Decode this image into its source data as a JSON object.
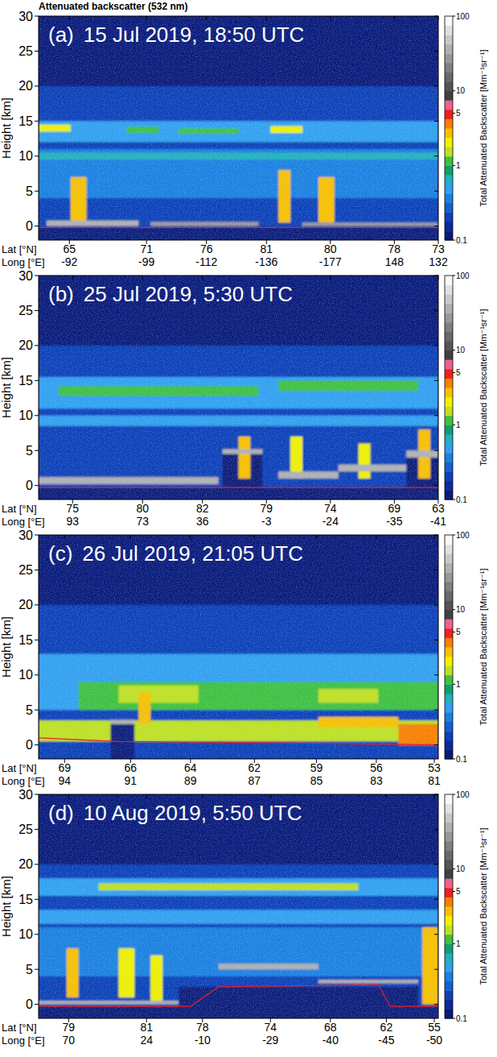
{
  "title": "Attenuated backscatter (532 nm)",
  "chart_data": [
    {
      "type": "curtain",
      "label": "(a)",
      "title": "15 Jul 2019, 18:50 UTC",
      "ylabel": "Height [km]",
      "xlabel": [
        "Lat [°N]",
        "Long [°E]"
      ],
      "xlim": [
        0,
        100
      ],
      "xticks": [
        {
          "value": 7.7,
          "label": [
            "65",
            "-92"
          ]
        },
        {
          "value": 27,
          "label": [
            "71",
            "-99"
          ]
        },
        {
          "value": 42,
          "label": [
            "76",
            "-112"
          ]
        },
        {
          "value": 57,
          "label": [
            "81",
            "-136"
          ]
        },
        {
          "value": 73,
          "label": [
            "80",
            "-177"
          ]
        },
        {
          "value": 89,
          "label": [
            "78",
            "148"
          ]
        },
        {
          "value": 100,
          "label": [
            "73",
            "132"
          ]
        }
      ],
      "ylim": [
        -2,
        30
      ],
      "yticks": [
        0,
        5,
        10,
        15,
        20,
        25,
        30
      ],
      "background": 0.11,
      "layers": [
        {
          "x": [
            0,
            100
          ],
          "y": [
            -2,
            20
          ],
          "value": 0.2
        },
        {
          "x": [
            0,
            100
          ],
          "y": [
            4,
            11
          ],
          "value": 0.35
        },
        {
          "x": [
            0,
            100
          ],
          "y": [
            12,
            15
          ],
          "value": 0.45
        },
        {
          "x": [
            0,
            100
          ],
          "y": [
            9.5,
            10.5
          ],
          "value": 0.6
        },
        {
          "x": [
            0,
            8
          ],
          "y": [
            13.5,
            14.5
          ],
          "value": 1.8
        },
        {
          "x": [
            22,
            30
          ],
          "y": [
            13.3,
            14.2
          ],
          "value": 1.2
        },
        {
          "x": [
            35,
            50
          ],
          "y": [
            13.2,
            14
          ],
          "value": 1.2
        },
        {
          "x": [
            58,
            66
          ],
          "y": [
            13.3,
            14.3
          ],
          "value": 2
        },
        {
          "x": [
            0,
            100
          ],
          "y": [
            -2,
            -0.2
          ],
          "value": 0.1
        },
        {
          "x": [
            8,
            12
          ],
          "y": [
            0.5,
            7
          ],
          "value": 3
        },
        {
          "x": [
            60,
            63
          ],
          "y": [
            0.5,
            8
          ],
          "value": 2.5
        },
        {
          "x": [
            70,
            74
          ],
          "y": [
            0.5,
            7
          ],
          "value": 3
        },
        {
          "x": [
            2,
            25
          ],
          "y": [
            0,
            0.8
          ],
          "value": 40
        },
        {
          "x": [
            28,
            55
          ],
          "y": [
            0,
            0.6
          ],
          "value": 30
        },
        {
          "x": [
            66,
            100
          ],
          "y": [
            0,
            0.5
          ],
          "value": 30
        }
      ],
      "surface": {
        "x": [
          0,
          100
        ],
        "values": [
          -0.2,
          -0.2
        ],
        "color": "#e8202a"
      },
      "colorbar": {
        "label": "Total Attenuated Backscatter [Mm⁻¹sr⁻¹]",
        "log": true,
        "range": [
          0.1,
          100
        ],
        "ticks": [
          0.1,
          1,
          5,
          10,
          100
        ],
        "colors": [
          "#0a1a7a",
          "#0d2a9a",
          "#1040b8",
          "#1560d0",
          "#1a80e0",
          "#30a0f0",
          "#20b0c0",
          "#10a070",
          "#40c040",
          "#c0e020",
          "#f0f000",
          "#f8c000",
          "#f88000",
          "#f02020",
          "#f06090",
          "#404040",
          "#555555",
          "#6a6a6a",
          "#808080",
          "#999999",
          "#b0b0b0",
          "#c8c8c8",
          "#e0e0e0",
          "#f8f8f8"
        ]
      }
    },
    {
      "type": "curtain",
      "label": "(b)",
      "title": "25 Jul 2019, 5:30 UTC",
      "ylabel": "Height [km]",
      "xlabel": [
        "Lat [°N]",
        "Long [°E]"
      ],
      "xlim": [
        0,
        100
      ],
      "xticks": [
        {
          "value": 8.5,
          "label": [
            "75",
            "93"
          ]
        },
        {
          "value": 26,
          "label": [
            "80",
            "73"
          ]
        },
        {
          "value": 41,
          "label": [
            "82",
            "36"
          ]
        },
        {
          "value": 57,
          "label": [
            "79",
            "-3"
          ]
        },
        {
          "value": 73,
          "label": [
            "74",
            "-24"
          ]
        },
        {
          "value": 89,
          "label": [
            "69",
            "-35"
          ]
        },
        {
          "value": 100,
          "label": [
            "63",
            "-41"
          ]
        }
      ],
      "ylim": [
        -2,
        30
      ],
      "yticks": [
        0,
        5,
        10,
        15,
        20,
        25,
        30
      ],
      "background": 0.11,
      "layers": [
        {
          "x": [
            0,
            100
          ],
          "y": [
            -2,
            20
          ],
          "value": 0.22
        },
        {
          "x": [
            0,
            100
          ],
          "y": [
            11,
            15.5
          ],
          "value": 0.5
        },
        {
          "x": [
            0,
            100
          ],
          "y": [
            8.5,
            10
          ],
          "value": 0.5
        },
        {
          "x": [
            5,
            55
          ],
          "y": [
            12.8,
            14.2
          ],
          "value": 1.3
        },
        {
          "x": [
            60,
            95
          ],
          "y": [
            13.5,
            15
          ],
          "value": 1
        },
        {
          "x": [
            0,
            100
          ],
          "y": [
            -2,
            -0.3
          ],
          "value": 0.1
        },
        {
          "x": [
            46,
            56
          ],
          "y": [
            -2,
            4.5
          ],
          "value": 0.1
        },
        {
          "x": [
            92,
            100
          ],
          "y": [
            -2,
            4
          ],
          "value": 0.1
        },
        {
          "x": [
            50,
            53
          ],
          "y": [
            1,
            7
          ],
          "value": 2.5
        },
        {
          "x": [
            63,
            66
          ],
          "y": [
            1,
            7
          ],
          "value": 2
        },
        {
          "x": [
            80,
            83
          ],
          "y": [
            1,
            6
          ],
          "value": 2
        },
        {
          "x": [
            95,
            98
          ],
          "y": [
            1,
            8
          ],
          "value": 2.5
        },
        {
          "x": [
            0,
            45
          ],
          "y": [
            0.2,
            1.2
          ],
          "value": 40
        },
        {
          "x": [
            46,
            56
          ],
          "y": [
            4.5,
            5.2
          ],
          "value": 40
        },
        {
          "x": [
            60,
            75
          ],
          "y": [
            1,
            2
          ],
          "value": 40
        },
        {
          "x": [
            75,
            92
          ],
          "y": [
            2,
            3
          ],
          "value": 40
        },
        {
          "x": [
            92,
            100
          ],
          "y": [
            4,
            5
          ],
          "value": 40
        }
      ],
      "surface": {
        "x": [
          0,
          100
        ],
        "values": [
          -0.3,
          -0.3
        ],
        "color": "#e8202a"
      },
      "colorbar": {
        "label": "Total Attenuated Backscatter [Mm⁻¹sr⁻¹]",
        "log": true,
        "range": [
          0.1,
          100
        ],
        "ticks": [
          0.1,
          1,
          5,
          10,
          100
        ],
        "colors": [
          "#0a1a7a",
          "#0d2a9a",
          "#1040b8",
          "#1560d0",
          "#1a80e0",
          "#30a0f0",
          "#20b0c0",
          "#10a070",
          "#40c040",
          "#c0e020",
          "#f0f000",
          "#f8c000",
          "#f88000",
          "#f02020",
          "#f06090",
          "#404040",
          "#555555",
          "#6a6a6a",
          "#808080",
          "#999999",
          "#b0b0b0",
          "#c8c8c8",
          "#e0e0e0",
          "#f8f8f8"
        ]
      }
    },
    {
      "type": "curtain",
      "label": "(c)",
      "title": "26 Jul 2019, 21:05 UTC",
      "ylabel": "Height [km]",
      "xlabel": [
        "Lat [°N]",
        "Long [°E]"
      ],
      "xlim": [
        0,
        100
      ],
      "xticks": [
        {
          "value": 6.5,
          "label": [
            "69",
            "94"
          ]
        },
        {
          "value": 23,
          "label": [
            "66",
            "91"
          ]
        },
        {
          "value": 38,
          "label": [
            "64",
            "89"
          ]
        },
        {
          "value": 54,
          "label": [
            "62",
            "87"
          ]
        },
        {
          "value": 69.5,
          "label": [
            "59",
            "85"
          ]
        },
        {
          "value": 84.5,
          "label": [
            "56",
            "83"
          ]
        },
        {
          "value": 99,
          "label": [
            "53",
            "81"
          ]
        }
      ],
      "ylim": [
        -2,
        30
      ],
      "yticks": [
        0,
        5,
        10,
        15,
        20,
        25,
        30
      ],
      "background": 0.11,
      "layers": [
        {
          "x": [
            0,
            100
          ],
          "y": [
            -2,
            20
          ],
          "value": 0.2
        },
        {
          "x": [
            0,
            100
          ],
          "y": [
            5,
            13
          ],
          "value": 0.5
        },
        {
          "x": [
            10,
            100
          ],
          "y": [
            5,
            9
          ],
          "value": 1
        },
        {
          "x": [
            20,
            40
          ],
          "y": [
            6,
            8.5
          ],
          "value": 1.6
        },
        {
          "x": [
            70,
            85
          ],
          "y": [
            6,
            8
          ],
          "value": 1.6
        },
        {
          "x": [
            0,
            100
          ],
          "y": [
            0.5,
            3.5
          ],
          "value": 1.4
        },
        {
          "x": [
            70,
            90
          ],
          "y": [
            2.5,
            4
          ],
          "value": 2.8
        },
        {
          "x": [
            90,
            100
          ],
          "y": [
            0,
            3
          ],
          "value": 3.5
        },
        {
          "x": [
            25,
            28
          ],
          "y": [
            3,
            7.5
          ],
          "value": 3
        },
        {
          "x": [
            18,
            24
          ],
          "y": [
            -2,
            3
          ],
          "value": 0.1
        },
        {
          "x": [
            18,
            24
          ],
          "y": [
            3,
            3.6
          ],
          "value": 40
        }
      ],
      "surface": {
        "x": [
          0,
          20,
          60,
          100
        ],
        "values": [
          1,
          0.5,
          0.3,
          0
        ],
        "color": "#e8202a"
      },
      "colorbar": {
        "label": "Total Attenuated Backscatter [Mm⁻¹sr⁻¹]",
        "log": true,
        "range": [
          0.1,
          100
        ],
        "ticks": [
          0.1,
          1,
          5,
          10,
          100
        ],
        "colors": [
          "#0a1a7a",
          "#0d2a9a",
          "#1040b8",
          "#1560d0",
          "#1a80e0",
          "#30a0f0",
          "#20b0c0",
          "#10a070",
          "#40c040",
          "#c0e020",
          "#f0f000",
          "#f8c000",
          "#f88000",
          "#f02020",
          "#f06090",
          "#404040",
          "#555555",
          "#6a6a6a",
          "#808080",
          "#999999",
          "#b0b0b0",
          "#c8c8c8",
          "#e0e0e0",
          "#f8f8f8"
        ]
      }
    },
    {
      "type": "curtain",
      "label": "(d)",
      "title": "10 Aug 2019, 5:50 UTC",
      "ylabel": "Height [km]",
      "xlabel": [
        "Lat [°N]",
        "Long [°E]"
      ],
      "xlim": [
        0,
        100
      ],
      "xticks": [
        {
          "value": 7.5,
          "label": [
            "79",
            "70"
          ]
        },
        {
          "value": 27,
          "label": [
            "81",
            "24"
          ]
        },
        {
          "value": 41,
          "label": [
            "78",
            "-10"
          ]
        },
        {
          "value": 58,
          "label": [
            "74",
            "-29"
          ]
        },
        {
          "value": 73,
          "label": [
            "68",
            "-40"
          ]
        },
        {
          "value": 87,
          "label": [
            "62",
            "-45"
          ]
        },
        {
          "value": 99,
          "label": [
            "55",
            "-50"
          ]
        }
      ],
      "ylim": [
        -2,
        30
      ],
      "yticks": [
        0,
        5,
        10,
        15,
        20,
        25,
        30
      ],
      "background": 0.11,
      "layers": [
        {
          "x": [
            0,
            100
          ],
          "y": [
            -2,
            20
          ],
          "value": 0.2
        },
        {
          "x": [
            0,
            100
          ],
          "y": [
            4,
            11
          ],
          "value": 0.35
        },
        {
          "x": [
            0,
            100
          ],
          "y": [
            11.5,
            13.5
          ],
          "value": 0.5
        },
        {
          "x": [
            0,
            100
          ],
          "y": [
            15.5,
            18
          ],
          "value": 0.5
        },
        {
          "x": [
            15,
            80
          ],
          "y": [
            16.3,
            17.3
          ],
          "value": 1.6
        },
        {
          "x": [
            0,
            100
          ],
          "y": [
            -2,
            -0.3
          ],
          "value": 0.1
        },
        {
          "x": [
            35,
            95
          ],
          "y": [
            -2,
            2.5
          ],
          "value": 0.1
        },
        {
          "x": [
            7,
            10
          ],
          "y": [
            1,
            8
          ],
          "value": 2.5
        },
        {
          "x": [
            20,
            24
          ],
          "y": [
            1,
            8
          ],
          "value": 2
        },
        {
          "x": [
            28,
            31
          ],
          "y": [
            0.5,
            7
          ],
          "value": 2
        },
        {
          "x": [
            96,
            100
          ],
          "y": [
            0,
            11
          ],
          "value": 3
        },
        {
          "x": [
            0,
            35
          ],
          "y": [
            0,
            0.5
          ],
          "value": 40
        },
        {
          "x": [
            45,
            70
          ],
          "y": [
            5,
            5.8
          ],
          "value": 40
        },
        {
          "x": [
            70,
            95
          ],
          "y": [
            3,
            3.5
          ],
          "value": 40
        }
      ],
      "surface": {
        "x": [
          0,
          38,
          45,
          85,
          88,
          100
        ],
        "values": [
          -0.3,
          -0.3,
          2.5,
          2.8,
          -0.3,
          -0.3
        ],
        "color": "#e8202a"
      },
      "colorbar": {
        "label": "Total Attenuated Backscatter [Mm⁻¹sr⁻¹]",
        "log": true,
        "range": [
          0.1,
          100
        ],
        "ticks": [
          0.1,
          1,
          5,
          10,
          100
        ],
        "colors": [
          "#0a1a7a",
          "#0d2a9a",
          "#1040b8",
          "#1560d0",
          "#1a80e0",
          "#30a0f0",
          "#20b0c0",
          "#10a070",
          "#40c040",
          "#c0e020",
          "#f0f000",
          "#f8c000",
          "#f88000",
          "#f02020",
          "#f06090",
          "#404040",
          "#555555",
          "#6a6a6a",
          "#808080",
          "#999999",
          "#b0b0b0",
          "#c8c8c8",
          "#e0e0e0",
          "#f8f8f8"
        ]
      }
    }
  ]
}
